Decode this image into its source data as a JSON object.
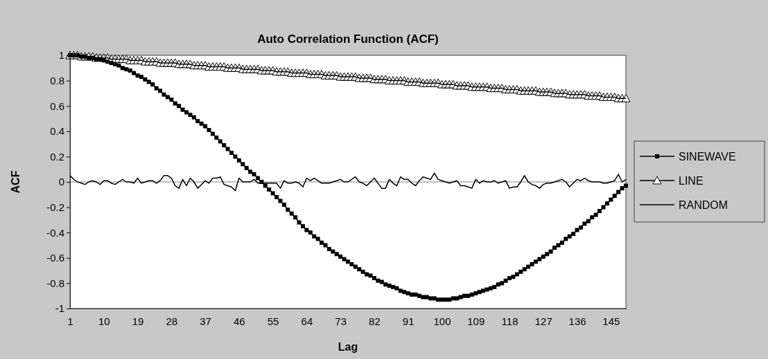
{
  "chart_data": {
    "type": "line",
    "title": "Auto Correlation Function (ACF)",
    "xlabel": "Lag",
    "ylabel": "ACF",
    "categories": [
      "1",
      null,
      null,
      null,
      null,
      null,
      null,
      null,
      null,
      "10",
      null,
      null,
      null,
      null,
      null,
      null,
      null,
      null,
      "19",
      null,
      null,
      null,
      null,
      null,
      null,
      null,
      null,
      "28",
      null,
      null,
      null,
      null,
      null,
      null,
      null,
      null,
      "37",
      null,
      null,
      null,
      null,
      null,
      null,
      null,
      null,
      "46",
      null,
      null,
      null,
      null,
      null,
      null,
      null,
      null,
      "55",
      null,
      null,
      null,
      null,
      null,
      null,
      null,
      null,
      "64",
      null,
      null,
      null,
      null,
      null,
      null,
      null,
      null,
      "73",
      null,
      null,
      null,
      null,
      null,
      null,
      null,
      null,
      "82",
      null,
      null,
      null,
      null,
      null,
      null,
      null,
      null,
      "91",
      null,
      null,
      null,
      null,
      null,
      null,
      null,
      null,
      "100",
      null,
      null,
      null,
      null,
      null,
      null,
      null,
      null,
      "109",
      null,
      null,
      null,
      null,
      null,
      null,
      null,
      null,
      "118",
      null,
      null,
      null,
      null,
      null,
      null,
      null,
      null,
      "127",
      null,
      null,
      null,
      null,
      null,
      null,
      null,
      null,
      "136",
      null,
      null,
      null,
      null,
      null,
      null,
      null,
      null,
      "145",
      null,
      null,
      null,
      null
    ],
    "ylim": [
      -1,
      1
    ],
    "yticks": [
      -1,
      -0.8,
      -0.6,
      -0.4,
      -0.2,
      0,
      0.2,
      0.4,
      0.6,
      0.8,
      1
    ],
    "legend": "right",
    "ref_lines": [
      {
        "axis": "y",
        "value": 0,
        "color": "#808080"
      }
    ],
    "series": [
      {
        "name": "SINEWAVE",
        "color": "#000000",
        "marker": "square",
        "values": [
          1.0,
          1.0,
          1.0,
          0.99,
          0.99,
          0.98,
          0.98,
          0.97,
          0.97,
          0.96,
          0.95,
          0.94,
          0.93,
          0.92,
          0.9,
          0.89,
          0.88,
          0.86,
          0.84,
          0.83,
          0.81,
          0.79,
          0.77,
          0.74,
          0.72,
          0.69,
          0.67,
          0.65,
          0.62,
          0.6,
          0.57,
          0.55,
          0.53,
          0.51,
          0.48,
          0.46,
          0.44,
          0.41,
          0.38,
          0.35,
          0.32,
          0.29,
          0.26,
          0.23,
          0.2,
          0.17,
          0.14,
          0.11,
          0.08,
          0.06,
          0.03,
          0.0,
          -0.03,
          -0.06,
          -0.09,
          -0.12,
          -0.15,
          -0.18,
          -0.22,
          -0.25,
          -0.28,
          -0.32,
          -0.35,
          -0.38,
          -0.4,
          -0.43,
          -0.45,
          -0.48,
          -0.5,
          -0.53,
          -0.55,
          -0.57,
          -0.59,
          -0.61,
          -0.63,
          -0.65,
          -0.67,
          -0.69,
          -0.71,
          -0.73,
          -0.74,
          -0.76,
          -0.78,
          -0.79,
          -0.81,
          -0.82,
          -0.83,
          -0.84,
          -0.86,
          -0.87,
          -0.88,
          -0.89,
          -0.89,
          -0.9,
          -0.91,
          -0.91,
          -0.92,
          -0.92,
          -0.93,
          -0.93,
          -0.93,
          -0.93,
          -0.92,
          -0.92,
          -0.91,
          -0.9,
          -0.9,
          -0.89,
          -0.88,
          -0.87,
          -0.86,
          -0.85,
          -0.84,
          -0.83,
          -0.81,
          -0.8,
          -0.78,
          -0.76,
          -0.75,
          -0.73,
          -0.71,
          -0.69,
          -0.67,
          -0.65,
          -0.63,
          -0.61,
          -0.59,
          -0.57,
          -0.55,
          -0.52,
          -0.5,
          -0.48,
          -0.45,
          -0.43,
          -0.41,
          -0.38,
          -0.36,
          -0.33,
          -0.31,
          -0.28,
          -0.26,
          -0.23,
          -0.2,
          -0.17,
          -0.14,
          -0.11,
          -0.08,
          -0.05,
          -0.03
        ]
      },
      {
        "name": "LINE",
        "color": "#000000",
        "marker": "triangle",
        "values": [
          1.0,
          1.0,
          1.0,
          0.99,
          0.99,
          0.99,
          0.99,
          0.98,
          0.98,
          0.98,
          0.98,
          0.97,
          0.97,
          0.97,
          0.97,
          0.97,
          0.96,
          0.96,
          0.96,
          0.96,
          0.95,
          0.95,
          0.95,
          0.95,
          0.94,
          0.94,
          0.94,
          0.94,
          0.94,
          0.93,
          0.93,
          0.93,
          0.93,
          0.92,
          0.92,
          0.92,
          0.92,
          0.91,
          0.91,
          0.91,
          0.91,
          0.91,
          0.9,
          0.9,
          0.9,
          0.9,
          0.89,
          0.89,
          0.89,
          0.89,
          0.89,
          0.88,
          0.88,
          0.88,
          0.88,
          0.87,
          0.87,
          0.87,
          0.87,
          0.86,
          0.86,
          0.86,
          0.86,
          0.86,
          0.85,
          0.85,
          0.85,
          0.85,
          0.84,
          0.84,
          0.84,
          0.84,
          0.83,
          0.83,
          0.83,
          0.83,
          0.83,
          0.82,
          0.82,
          0.82,
          0.82,
          0.81,
          0.81,
          0.81,
          0.81,
          0.8,
          0.8,
          0.8,
          0.8,
          0.8,
          0.79,
          0.79,
          0.79,
          0.79,
          0.78,
          0.78,
          0.78,
          0.78,
          0.78,
          0.77,
          0.77,
          0.77,
          0.77,
          0.76,
          0.76,
          0.76,
          0.76,
          0.75,
          0.75,
          0.75,
          0.75,
          0.75,
          0.74,
          0.74,
          0.74,
          0.74,
          0.73,
          0.73,
          0.73,
          0.73,
          0.72,
          0.72,
          0.72,
          0.72,
          0.72,
          0.71,
          0.71,
          0.71,
          0.71,
          0.7,
          0.7,
          0.7,
          0.7,
          0.69,
          0.69,
          0.69,
          0.69,
          0.69,
          0.68,
          0.68,
          0.68,
          0.68,
          0.67,
          0.67,
          0.67,
          0.67,
          0.66,
          0.66,
          0.66
        ]
      },
      {
        "name": "RANDOM",
        "color": "#000000",
        "marker": "none",
        "values": [
          0.05,
          0.02,
          0.0,
          -0.01,
          -0.02,
          0.0,
          0.01,
          0.0,
          -0.02,
          0.01,
          0.01,
          -0.01,
          -0.02,
          0.0,
          0.02,
          0.0,
          0.0,
          -0.01,
          0.03,
          -0.01,
          0.0,
          0.01,
          0.01,
          -0.01,
          0.01,
          0.05,
          0.05,
          0.03,
          -0.03,
          -0.05,
          0.02,
          -0.03,
          0.03,
          0.0,
          -0.05,
          -0.02,
          0.01,
          -0.01,
          0.03,
          0.03,
          0.04,
          -0.02,
          -0.03,
          -0.04,
          -0.07,
          0.03,
          0.0,
          0.0,
          0.0,
          0.02,
          -0.01,
          -0.01,
          -0.01,
          -0.01,
          -0.01,
          -0.01,
          -0.05,
          0.01,
          -0.01,
          -0.01,
          0.0,
          -0.01,
          -0.04,
          0.03,
          0.01,
          0.03,
          0.01,
          -0.01,
          -0.01,
          -0.01,
          0.0,
          0.01,
          0.02,
          0.0,
          0.0,
          0.02,
          0.04,
          0.0,
          -0.01,
          -0.03,
          0.0,
          0.03,
          -0.01,
          -0.05,
          -0.05,
          0.02,
          -0.01,
          -0.03,
          0.04,
          0.02,
          0.02,
          -0.01,
          -0.03,
          0.01,
          0.04,
          0.03,
          0.02,
          0.07,
          0.02,
          0.01,
          0.0,
          -0.01,
          0.0,
          0.01,
          -0.03,
          -0.03,
          -0.04,
          -0.05,
          0.02,
          -0.01,
          0.01,
          0.0,
          0.0,
          0.01,
          -0.01,
          0.0,
          0.01,
          -0.05,
          -0.04,
          -0.04,
          0.0,
          0.05,
          0.0,
          -0.02,
          -0.03,
          -0.05,
          -0.02,
          -0.01,
          -0.01,
          0.0,
          0.01,
          0.02,
          0.0,
          -0.04,
          -0.01,
          0.02,
          0.01,
          0.03,
          0.01,
          0.0,
          0.0,
          0.0,
          -0.01,
          -0.01,
          0.0,
          0.01,
          0.06,
          0.0,
          0.02
        ]
      }
    ]
  }
}
